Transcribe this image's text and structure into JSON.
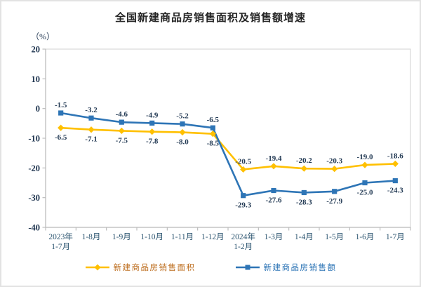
{
  "chart_data": {
    "type": "line",
    "title": "全国新建商品房销售面积及销售额增速",
    "ylabel": "（%）",
    "xlabel": "",
    "ylim": [
      -40,
      20
    ],
    "y_ticks": [
      20,
      10,
      0,
      -10,
      -20,
      -30,
      -40
    ],
    "grid": false,
    "legend_position": "bottom",
    "categories": [
      "2023年\n1-7月",
      "1-8月",
      "1-9月",
      "1-10月",
      "1-11月",
      "1-12月",
      "2024年\n1-2月",
      "1-3月",
      "1-4月",
      "1-5月",
      "1-6月",
      "1-7月"
    ],
    "series": [
      {
        "name": "新建商品房销售面积",
        "marker": "diamond",
        "color": "#FFC000",
        "label_text_color": "#BD6D1E",
        "values": [
          -6.5,
          -7.1,
          -7.5,
          -7.8,
          -8.0,
          -8.5,
          -20.5,
          -19.4,
          -20.2,
          -20.3,
          -19.0,
          -18.6
        ]
      },
      {
        "name": "新建商品房销售额",
        "marker": "square",
        "color": "#2E75B6",
        "label_text_color": "#2E75B6",
        "values": [
          -1.5,
          -3.2,
          -4.6,
          -4.9,
          -5.2,
          -6.5,
          -29.3,
          -27.6,
          -28.3,
          -27.9,
          -25.0,
          -24.3
        ]
      }
    ],
    "data_label_color": "#243B55",
    "tick_text_color": "#1F3550",
    "axis_text_color": "#2C5570",
    "axis_line_color": "#BDBDBD",
    "plot_border_color": "#D9D9D9"
  }
}
